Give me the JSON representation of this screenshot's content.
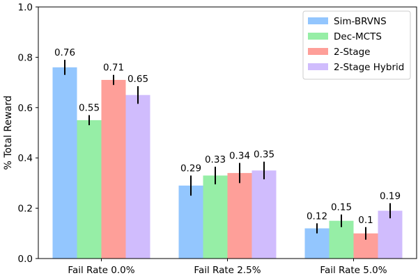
{
  "chart_data": {
    "type": "bar",
    "title": "",
    "xlabel": "",
    "ylabel": "% Total Reward",
    "ylim": [
      0,
      1.0
    ],
    "yticks": [
      "0.0",
      "0.2",
      "0.4",
      "0.6",
      "0.8",
      "1.0"
    ],
    "grid": false,
    "legend_position": "top-right",
    "categories": [
      "Fail Rate 0.0%",
      "Fail Rate 2.5%",
      "Fail Rate 5.0%"
    ],
    "series": [
      {
        "name": "Sim-BRVNS",
        "color": "#93c6fe",
        "values": [
          0.76,
          0.29,
          0.12
        ],
        "value_labels": [
          "0.76",
          "0.29",
          "0.12"
        ],
        "errors": [
          0.03,
          0.04,
          0.02
        ]
      },
      {
        "name": "Dec-MCTS",
        "color": "#96eea6",
        "values": [
          0.55,
          0.33,
          0.15
        ],
        "value_labels": [
          "0.55",
          "0.33",
          "0.15"
        ],
        "errors": [
          0.02,
          0.035,
          0.025
        ]
      },
      {
        "name": "2-Stage",
        "color": "#fe9f99",
        "values": [
          0.71,
          0.34,
          0.1
        ],
        "value_labels": [
          "0.71",
          "0.34",
          "0.1"
        ],
        "errors": [
          0.02,
          0.04,
          0.025
        ]
      },
      {
        "name": "2-Stage Hybrid",
        "color": "#d0bcfd",
        "values": [
          0.65,
          0.35,
          0.19
        ],
        "value_labels": [
          "0.65",
          "0.35",
          "0.19"
        ],
        "errors": [
          0.035,
          0.035,
          0.03
        ]
      }
    ]
  }
}
